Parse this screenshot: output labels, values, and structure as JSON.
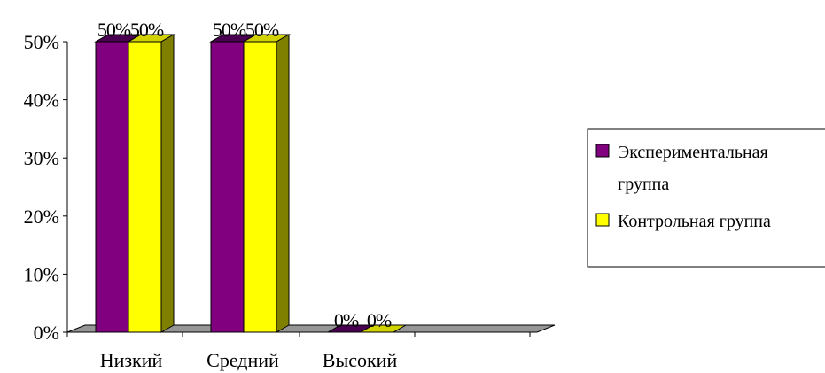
{
  "chart_data": {
    "type": "bar",
    "title": "",
    "xlabel": "",
    "ylabel": "",
    "categories": [
      "Низкий",
      "Средний",
      "Высокий"
    ],
    "ylim": [
      0,
      50
    ],
    "y_ticks": [
      "0%",
      "10%",
      "20%",
      "30%",
      "40%",
      "50%"
    ],
    "grid": false,
    "legend_position": "right",
    "series": [
      {
        "name": "Экспериментальная группа",
        "legend_lines": [
          "Экспериментальная",
          "группа"
        ],
        "values": [
          50,
          50,
          0
        ],
        "labels": [
          "50%",
          "50%",
          "0%"
        ],
        "color": "#800080",
        "top_color": "#4a0050",
        "side_color": "#3c0040"
      },
      {
        "name": "Контрольная группа",
        "legend_lines": [
          "Контрольная группа"
        ],
        "values": [
          50,
          50,
          0
        ],
        "labels": [
          "50%",
          "50%",
          "0%"
        ],
        "color": "#ffff00",
        "top_color": "#d2d200",
        "side_color": "#808000"
      }
    ],
    "floor_color": "#969696"
  }
}
